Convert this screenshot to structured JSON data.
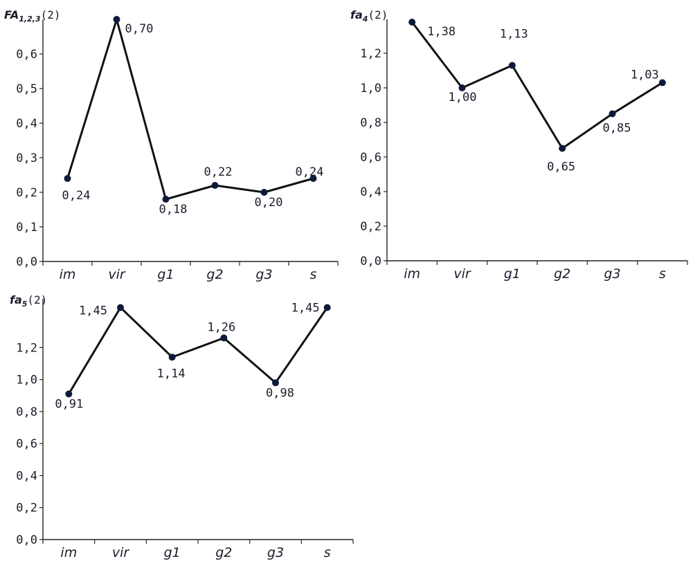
{
  "chart_data": [
    {
      "type": "line",
      "title": "FA",
      "title_sub": "1,2,3",
      "title_tail": "(2)",
      "categories": [
        "im",
        "vir",
        "g1",
        "g2",
        "g3",
        "s"
      ],
      "ylim": [
        0,
        0.7
      ],
      "yticks": [
        "0,0",
        "0,1",
        "0,2",
        "0,3",
        "0,4",
        "0,5",
        "0,6"
      ],
      "values": [
        0.24,
        0.7,
        0.18,
        0.22,
        0.2,
        0.24
      ],
      "data_labels": [
        "0,24",
        "0,70",
        "0,18",
        "0,22",
        "0,20",
        "0,24"
      ],
      "grid": false,
      "color": "#111111",
      "marker_color": "#0d1a3a"
    },
    {
      "type": "line",
      "title": "fa",
      "title_sub": "4",
      "title_tail": "(2)",
      "categories": [
        "im",
        "vir",
        "g1",
        "g2",
        "g3",
        "s"
      ],
      "ylim": [
        0,
        1.4
      ],
      "yticks": [
        "0,0",
        "0,2",
        "0,4",
        "0,6",
        "0,8",
        "1,0",
        "1,2"
      ],
      "values": [
        1.38,
        1.0,
        1.13,
        0.65,
        0.85,
        1.03
      ],
      "data_labels": [
        "1,38",
        "1,00",
        "1,13",
        "0,65",
        "0,85",
        "1,03"
      ],
      "grid": false,
      "color": "#111111",
      "marker_color": "#0d1a3a"
    },
    {
      "type": "line",
      "title": "fa",
      "title_sub": "5",
      "title_tail": "(2)",
      "categories": [
        "im",
        "vir",
        "g1",
        "g2",
        "g3",
        "s"
      ],
      "ylim": [
        0,
        1.45
      ],
      "yticks": [
        "0,0",
        "0,2",
        "0,4",
        "0,6",
        "0,8",
        "1,0",
        "1,2"
      ],
      "values": [
        0.91,
        1.45,
        1.14,
        1.26,
        0.98,
        1.45
      ],
      "data_labels": [
        "0,91",
        "1,45",
        "1,14",
        "1,26",
        "0,98",
        "1,45"
      ],
      "grid": false,
      "color": "#111111",
      "marker_color": "#0d1a3a"
    }
  ]
}
